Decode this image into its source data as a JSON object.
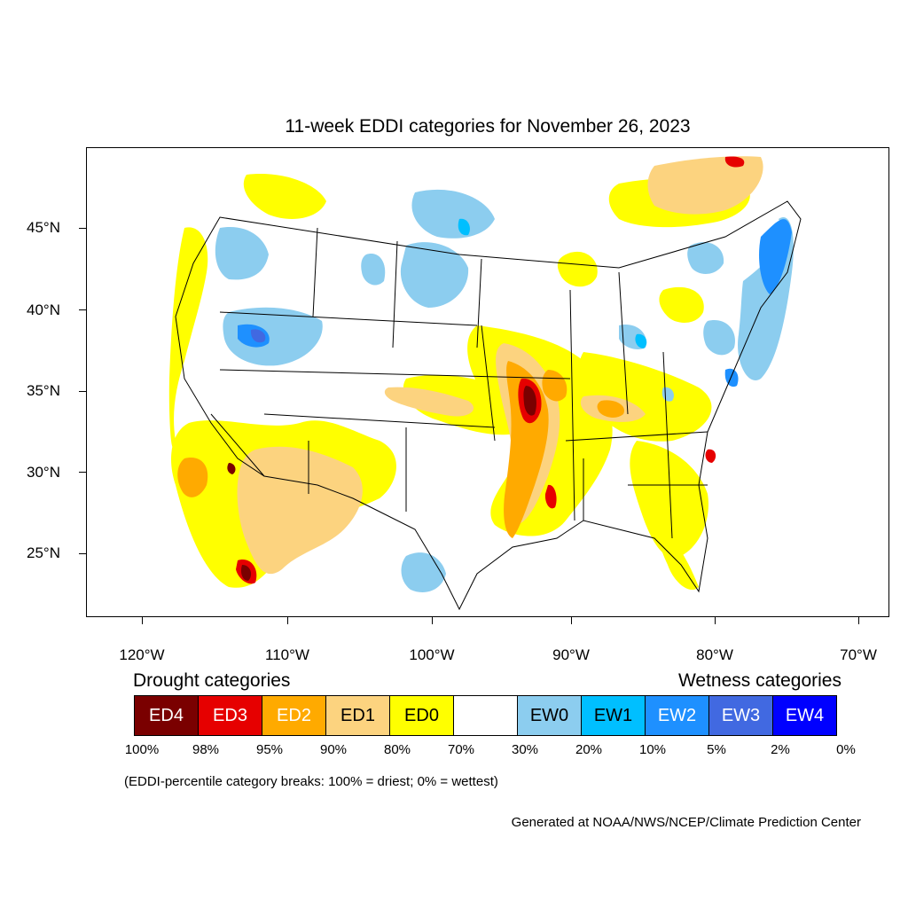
{
  "title": "11-week EDDI categories for November 26, 2023",
  "axes": {
    "lat_labels": [
      "45°N",
      "40°N",
      "35°N",
      "30°N",
      "25°N"
    ],
    "lon_labels": [
      "120°W",
      "110°W",
      "100°W",
      "90°W",
      "80°W",
      "70°W"
    ]
  },
  "legend": {
    "drought_heading": "Drought categories",
    "wetness_heading": "Wetness categories",
    "categories": [
      {
        "label": "ED4",
        "color": "#7a0000",
        "text_color": "#ffffff"
      },
      {
        "label": "ED3",
        "color": "#e60000",
        "text_color": "#ffffff"
      },
      {
        "label": "ED2",
        "color": "#ffaa00",
        "text_color": "#ffffff"
      },
      {
        "label": "ED1",
        "color": "#fcd37f",
        "text_color": "#000000"
      },
      {
        "label": "ED0",
        "color": "#ffff00",
        "text_color": "#000000"
      },
      {
        "label": "",
        "color": "#ffffff",
        "text_color": "#000000"
      },
      {
        "label": "EW0",
        "color": "#8ccdef",
        "text_color": "#000000"
      },
      {
        "label": "EW1",
        "color": "#00bfff",
        "text_color": "#000000"
      },
      {
        "label": "EW2",
        "color": "#1e90ff",
        "text_color": "#ffffff"
      },
      {
        "label": "EW3",
        "color": "#4169e1",
        "text_color": "#ffffff"
      },
      {
        "label": "EW4",
        "color": "#0000ff",
        "text_color": "#ffffff"
      }
    ],
    "breaks": [
      "100%",
      "98%",
      "95%",
      "90%",
      "80%",
      "70%",
      "30%",
      "20%",
      "10%",
      "5%",
      "2%",
      "0%"
    ]
  },
  "note": "(EDDI-percentile category breaks: 100% = driest; 0% = wettest)",
  "credit": "Generated at NOAA/NWS/NCEP/Climate Prediction Center"
}
